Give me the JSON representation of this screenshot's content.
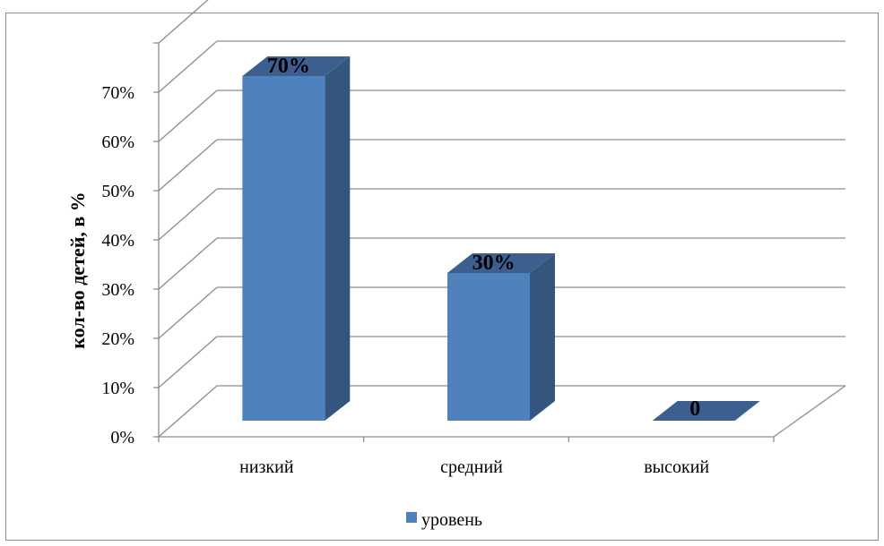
{
  "chart_data": {
    "type": "bar",
    "categories": [
      "низкий",
      "средний",
      "высокий"
    ],
    "series": [
      {
        "name": "уровень",
        "values": [
          70,
          30,
          0
        ],
        "data_labels": [
          "70%",
          "30%",
          "0"
        ]
      }
    ],
    "ylabel": "кол-во детей, в %",
    "xlabel": "",
    "ylim": [
      0,
      70
    ],
    "yticks": [
      "0%",
      "10%",
      "20%",
      "30%",
      "40%",
      "50%",
      "60%",
      "70%"
    ],
    "grid": true,
    "legend_position": "bottom",
    "colors": {
      "front": "#4f81bd",
      "side": "#34557d",
      "top": "#3c5f8f",
      "grid": "#8c8c8c"
    }
  }
}
